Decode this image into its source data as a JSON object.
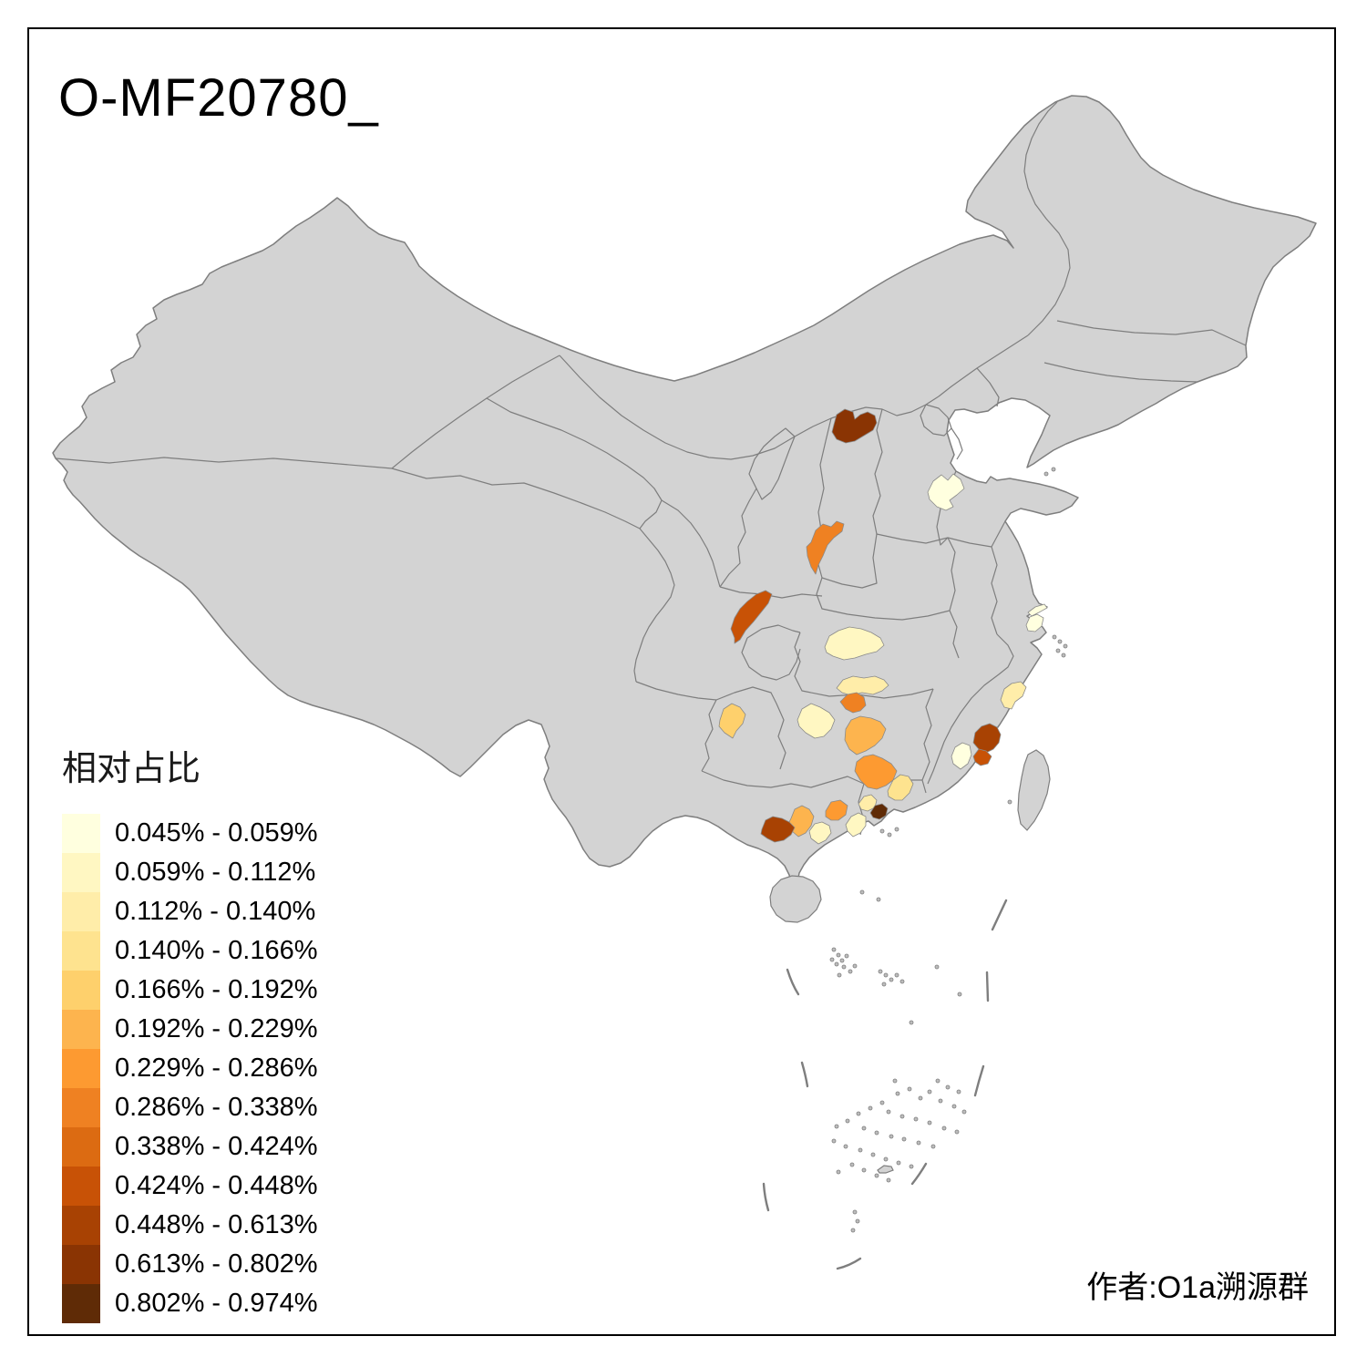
{
  "title": "O-MF20780_",
  "attribution": "作者:O1a溯源群",
  "legend": {
    "title": "相对占比",
    "bins": [
      {
        "label": "0.045% - 0.059%",
        "color": "#FFFFDF"
      },
      {
        "label": "0.059% - 0.112%",
        "color": "#FFF7C2"
      },
      {
        "label": "0.112% - 0.140%",
        "color": "#FFEDA9"
      },
      {
        "label": "0.140% - 0.166%",
        "color": "#FEE38F"
      },
      {
        "label": "0.166% - 0.192%",
        "color": "#FED06C"
      },
      {
        "label": "0.192% - 0.229%",
        "color": "#FDB44E"
      },
      {
        "label": "0.229% - 0.286%",
        "color": "#FD9A31"
      },
      {
        "label": "0.286% - 0.338%",
        "color": "#EF8122"
      },
      {
        "label": "0.338% - 0.424%",
        "color": "#DC6B12"
      },
      {
        "label": "0.424% - 0.448%",
        "color": "#C85206"
      },
      {
        "label": "0.448% - 0.613%",
        "color": "#A84203"
      },
      {
        "label": "0.613% - 0.802%",
        "color": "#8A3403"
      },
      {
        "label": "0.802% - 0.974%",
        "color": "#5F2B06"
      }
    ]
  },
  "map": {
    "sea_fill": "#FFFFFF",
    "land_fill": "#D3D3D3",
    "border_color": "#7E7E7E",
    "frame_color": "#000000",
    "regions": [
      {
        "name": "inner-mongolia-hohhot",
        "bin": 12,
        "color": "#8A3403"
      },
      {
        "name": "hebei-south-pale",
        "bin": 1,
        "color": "#FFFFDF"
      },
      {
        "name": "shanxi-south-orange",
        "bin": 8,
        "color": "#EF8122"
      },
      {
        "name": "shaanxi-south-dark-orange",
        "bin": 10,
        "color": "#C85206"
      },
      {
        "name": "hubei-northwest-cream",
        "bin": 2,
        "color": "#FFF7C2"
      },
      {
        "name": "hunan-north-paleyellow",
        "bin": 3,
        "color": "#FFEDA9"
      },
      {
        "name": "hunan-west-cream",
        "bin": 2,
        "color": "#FFF7C2"
      },
      {
        "name": "hunan-center-orange",
        "bin": 8,
        "color": "#EF8122"
      },
      {
        "name": "guizhou-center-lightorange",
        "bin": 5,
        "color": "#FED06C"
      },
      {
        "name": "hunan-south-orange",
        "bin": 6,
        "color": "#FDB44E"
      },
      {
        "name": "guangxi-northeast-orange",
        "bin": 7,
        "color": "#FD9A31"
      },
      {
        "name": "guangxi-west-orange",
        "bin": 6,
        "color": "#FDB44E"
      },
      {
        "name": "guangxi-nanning-dark",
        "bin": 11,
        "color": "#A84203"
      },
      {
        "name": "guangxi-center-orange",
        "bin": 7,
        "color": "#FD9A31"
      },
      {
        "name": "guangxi-southeast-cream",
        "bin": 2,
        "color": "#FFF7C2"
      },
      {
        "name": "guangdong-west-cream",
        "bin": 2,
        "color": "#FFF7C2"
      },
      {
        "name": "guangxi-wuzhou-paleyellow",
        "bin": 3,
        "color": "#FFEDA9"
      },
      {
        "name": "pearl-river-delta-darkbrown",
        "bin": 13,
        "color": "#5F2B06"
      },
      {
        "name": "guangdong-east-paleyellow",
        "bin": 4,
        "color": "#FEE38F"
      },
      {
        "name": "fujian-quanzhou-dark",
        "bin": 11,
        "color": "#A84203"
      },
      {
        "name": "fujian-xiamen-dark",
        "bin": 10,
        "color": "#C85206"
      },
      {
        "name": "fujian-west-cream",
        "bin": 1,
        "color": "#FFFFDF"
      },
      {
        "name": "fujian-fuzhou-paleyellow",
        "bin": 3,
        "color": "#FFEDA9"
      },
      {
        "name": "shanghai-pale",
        "bin": 1,
        "color": "#FFFFDF"
      }
    ]
  },
  "chart_data": {
    "type": "heatmap",
    "subtype": "choropleth-map-of-china",
    "title": "O-MF20780_",
    "legend_title": "相对占比",
    "legend_position": "bottom-left",
    "bins": [
      "0.045% - 0.059%",
      "0.059% - 0.112%",
      "0.112% - 0.140%",
      "0.140% - 0.166%",
      "0.166% - 0.192%",
      "0.192% - 0.229%",
      "0.229% - 0.286%",
      "0.286% - 0.338%",
      "0.338% - 0.424%",
      "0.424% - 0.448%",
      "0.448% - 0.613%",
      "0.613% - 0.802%",
      "0.802% - 0.974%"
    ],
    "value_range": [
      "0.045%",
      "0.974%"
    ],
    "highlighted_regions": [
      {
        "area": "Inner Mongolia (Hohhot area)",
        "bin_index": 12
      },
      {
        "area": "Hebei south / Shandong west",
        "bin_index": 1
      },
      {
        "area": "Shanxi south",
        "bin_index": 8
      },
      {
        "area": "Shaanxi south",
        "bin_index": 10
      },
      {
        "area": "Hubei northwest",
        "bin_index": 2
      },
      {
        "area": "Hunan north",
        "bin_index": 3
      },
      {
        "area": "Hunan west",
        "bin_index": 2
      },
      {
        "area": "Hunan center",
        "bin_index": 8
      },
      {
        "area": "Guizhou center",
        "bin_index": 5
      },
      {
        "area": "Hunan south",
        "bin_index": 6
      },
      {
        "area": "Guangxi northeast (Guilin)",
        "bin_index": 7
      },
      {
        "area": "Guangxi west",
        "bin_index": 6
      },
      {
        "area": "Guangxi (Nanning)",
        "bin_index": 11
      },
      {
        "area": "Guangxi center",
        "bin_index": 7
      },
      {
        "area": "Guangxi southeast",
        "bin_index": 2
      },
      {
        "area": "Guangdong west",
        "bin_index": 2
      },
      {
        "area": "Guangxi Wuzhou",
        "bin_index": 3
      },
      {
        "area": "Pearl River Delta",
        "bin_index": 13
      },
      {
        "area": "Guangdong east",
        "bin_index": 4
      },
      {
        "area": "Fujian (Quanzhou)",
        "bin_index": 11
      },
      {
        "area": "Fujian (Xiamen-Zhangzhou)",
        "bin_index": 10
      },
      {
        "area": "Fujian west",
        "bin_index": 1
      },
      {
        "area": "Fujian (Fuzhou north)",
        "bin_index": 3
      },
      {
        "area": "Shanghai",
        "bin_index": 1
      }
    ],
    "other_regions": "gray (no data)"
  }
}
